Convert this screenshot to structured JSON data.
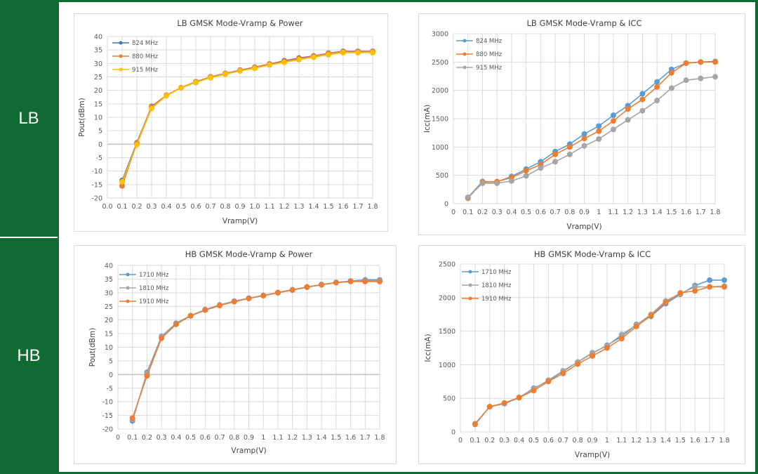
{
  "sidebar": {
    "bands": [
      {
        "label": "LB"
      },
      {
        "label": "HB"
      }
    ]
  },
  "colors": {
    "frame": "#0f6b31",
    "blue": "#4472c4",
    "lightblue": "#5b9bd5",
    "orange": "#ed7d31",
    "yellow": "#ffc000",
    "gray": "#a5a5a5"
  },
  "chart_data": [
    {
      "type": "line",
      "title": "LB GMSK Mode-Vramp & Power",
      "xlabel": "Vramp(V)",
      "ylabel": "Pout(dBm)",
      "xlim": [
        0,
        1.8
      ],
      "ylim": [
        -20,
        40
      ],
      "ystep": 5,
      "grid": true,
      "legend": "top-left",
      "xtick_labels": [
        "0.0",
        "0.1",
        "0.2",
        "0.3",
        "0.4",
        "0.5",
        "0.6",
        "0.7",
        "0.8",
        "0.9",
        "1.0",
        "1.1",
        "1.2",
        "1.3",
        "1.4",
        "1.5",
        "1.6",
        "1.7",
        "1.8"
      ],
      "ytick_labels": [
        "40",
        "35",
        "30",
        "25",
        "20",
        "15",
        "10",
        "5",
        "0",
        "-5",
        "-10",
        "-15",
        "-20"
      ],
      "x": [
        0.1,
        0.2,
        0.3,
        0.4,
        0.5,
        0.6,
        0.7,
        0.8,
        0.9,
        1.0,
        1.1,
        1.2,
        1.3,
        1.4,
        1.5,
        1.6,
        1.7,
        1.8
      ],
      "series": [
        {
          "name": "824 MHz",
          "color": "#4472c4",
          "values": [
            -13.5,
            0.5,
            14,
            18.2,
            21,
            23.2,
            25,
            26.3,
            27.5,
            28.6,
            29.8,
            31,
            32,
            32.8,
            33.8,
            34.5,
            34.5,
            34.5
          ]
        },
        {
          "name": "880 MHz",
          "color": "#ed7d31",
          "values": [
            -15.5,
            0.3,
            13.8,
            18.2,
            21,
            23.2,
            24.9,
            26.3,
            27.4,
            28.5,
            29.7,
            30.8,
            31.8,
            32.7,
            33.7,
            34.4,
            34.4,
            34.4
          ]
        },
        {
          "name": "915 MHz",
          "color": "#ffc000",
          "values": [
            -14,
            -0.2,
            13.3,
            18,
            20.9,
            22.9,
            24.7,
            26,
            27.2,
            28.2,
            29.4,
            30.4,
            31.4,
            32.3,
            33.2,
            34,
            34,
            34
          ]
        }
      ]
    },
    {
      "type": "line",
      "title": "LB GMSK Mode-Vramp & ICC",
      "xlabel": "Vramp(V)",
      "ylabel": "Icc(mA)",
      "xlim": [
        0,
        1.8
      ],
      "ylim": [
        0,
        3000
      ],
      "ystep": 500,
      "grid": true,
      "legend": "top-left",
      "xtick_labels": [
        "0",
        "0.1",
        "0.2",
        "0.3",
        "0.4",
        "0.5",
        "0.6",
        "0.7",
        "0.8",
        "0.9",
        "1",
        "1.1",
        "1.2",
        "1.3",
        "1.4",
        "1.5",
        "1.6",
        "1.7",
        "1.8"
      ],
      "ytick_labels": [
        "3000",
        "2500",
        "2000",
        "1500",
        "1000",
        "500",
        "0"
      ],
      "x": [
        0.1,
        0.2,
        0.3,
        0.4,
        0.5,
        0.6,
        0.7,
        0.8,
        0.9,
        1.0,
        1.1,
        1.2,
        1.3,
        1.4,
        1.5,
        1.6,
        1.7,
        1.8
      ],
      "series": [
        {
          "name": "824 MHz",
          "color": "#5b9bd5",
          "values": [
            110,
            390,
            385,
            480,
            610,
            740,
            920,
            1050,
            1230,
            1370,
            1560,
            1730,
            1940,
            2150,
            2370,
            2480,
            2500,
            2510
          ]
        },
        {
          "name": "880 MHz",
          "color": "#ed7d31",
          "values": [
            95,
            380,
            390,
            460,
            580,
            690,
            870,
            1000,
            1150,
            1280,
            1460,
            1670,
            1840,
            2060,
            2310,
            2480,
            2500,
            2500
          ]
        },
        {
          "name": "915 MHz",
          "color": "#a5a5a5",
          "values": [
            110,
            360,
            360,
            400,
            490,
            630,
            740,
            870,
            1020,
            1140,
            1310,
            1480,
            1640,
            1820,
            2040,
            2180,
            2210,
            2240
          ]
        }
      ]
    },
    {
      "type": "line",
      "title": "HB GMSK Mode-Vramp & Power",
      "xlabel": "Vramp(V)",
      "ylabel": "Pout(dBm)",
      "xlim": [
        0,
        1.8
      ],
      "ylim": [
        -20,
        40
      ],
      "ystep": 5,
      "grid": true,
      "legend": "top-left",
      "xtick_labels": [
        "0",
        "0.1",
        "0.2",
        "0.3",
        "0.4",
        "0.5",
        "0.6",
        "0.7",
        "0.8",
        "0.9",
        "1",
        "1.1",
        "1.2",
        "1.3",
        "1.4",
        "1.5",
        "1.6",
        "1.7",
        "1.8"
      ],
      "ytick_labels": [
        "40",
        "35",
        "30",
        "25",
        "20",
        "15",
        "10",
        "5",
        "0",
        "-5",
        "-10",
        "-15",
        "-20"
      ],
      "x": [
        0.1,
        0.2,
        0.3,
        0.4,
        0.5,
        0.6,
        0.7,
        0.8,
        0.9,
        1.0,
        1.1,
        1.2,
        1.3,
        1.4,
        1.5,
        1.6,
        1.7,
        1.8
      ],
      "series": [
        {
          "name": "1710 MHz",
          "color": "#5b9bd5",
          "values": [
            -17,
            0.8,
            14,
            18.8,
            21.6,
            23.8,
            25.5,
            26.9,
            28,
            29,
            30,
            31,
            32,
            33,
            33.7,
            34.3,
            34.7,
            34.7
          ]
        },
        {
          "name": "1810 MHz",
          "color": "#a5a5a5",
          "values": [
            -16.5,
            0.3,
            13.8,
            18.6,
            21.5,
            23.7,
            25.4,
            26.8,
            27.9,
            29,
            30.1,
            31.1,
            32.1,
            32.9,
            33.8,
            34.2,
            34.3,
            34.4
          ]
        },
        {
          "name": "1910 MHz",
          "color": "#ed7d31",
          "values": [
            -16,
            -0.5,
            13.3,
            18.4,
            21.5,
            23.6,
            25.3,
            26.7,
            27.9,
            28.9,
            30,
            31,
            32.1,
            32.9,
            33.7,
            34.1,
            34.1,
            34.1
          ]
        }
      ]
    },
    {
      "type": "line",
      "title": "HB GMSK Mode-Vramp & ICC",
      "xlabel": "Vramp(V)",
      "ylabel": "Icc(mA)",
      "xlim": [
        0,
        1.8
      ],
      "ylim": [
        0,
        2500
      ],
      "ystep": 500,
      "grid": true,
      "legend": "top-left",
      "xtick_labels": [
        "0",
        "0.1",
        "0.2",
        "0.3",
        "0.4",
        "0.5",
        "0.6",
        "0.7",
        "0.8",
        "0.9",
        "1",
        "1.1",
        "1.2",
        "1.3",
        "1.4",
        "1.5",
        "1.6",
        "1.7",
        "1.8"
      ],
      "ytick_labels": [
        "2500",
        "2000",
        "1500",
        "1000",
        "500",
        "0"
      ],
      "x": [
        0.1,
        0.2,
        0.3,
        0.4,
        0.5,
        0.6,
        0.7,
        0.8,
        0.9,
        1.0,
        1.1,
        1.2,
        1.3,
        1.4,
        1.5,
        1.6,
        1.7,
        1.8
      ],
      "series": [
        {
          "name": "1710 MHz",
          "color": "#5b9bd5",
          "values": [
            120,
            375,
            420,
            510,
            650,
            760,
            900,
            1040,
            1170,
            1290,
            1420,
            1600,
            1720,
            1910,
            2050,
            2180,
            2260,
            2260
          ]
        },
        {
          "name": "1810 MHz",
          "color": "#a5a5a5",
          "values": [
            115,
            375,
            425,
            515,
            640,
            770,
            910,
            1040,
            1180,
            1280,
            1450,
            1590,
            1750,
            1950,
            2060,
            2160,
            2160,
            2170
          ]
        },
        {
          "name": "1910 MHz",
          "color": "#ed7d31",
          "values": [
            110,
            375,
            430,
            510,
            615,
            750,
            870,
            1010,
            1130,
            1250,
            1390,
            1570,
            1730,
            1930,
            2070,
            2100,
            2160,
            2160
          ]
        }
      ]
    }
  ]
}
